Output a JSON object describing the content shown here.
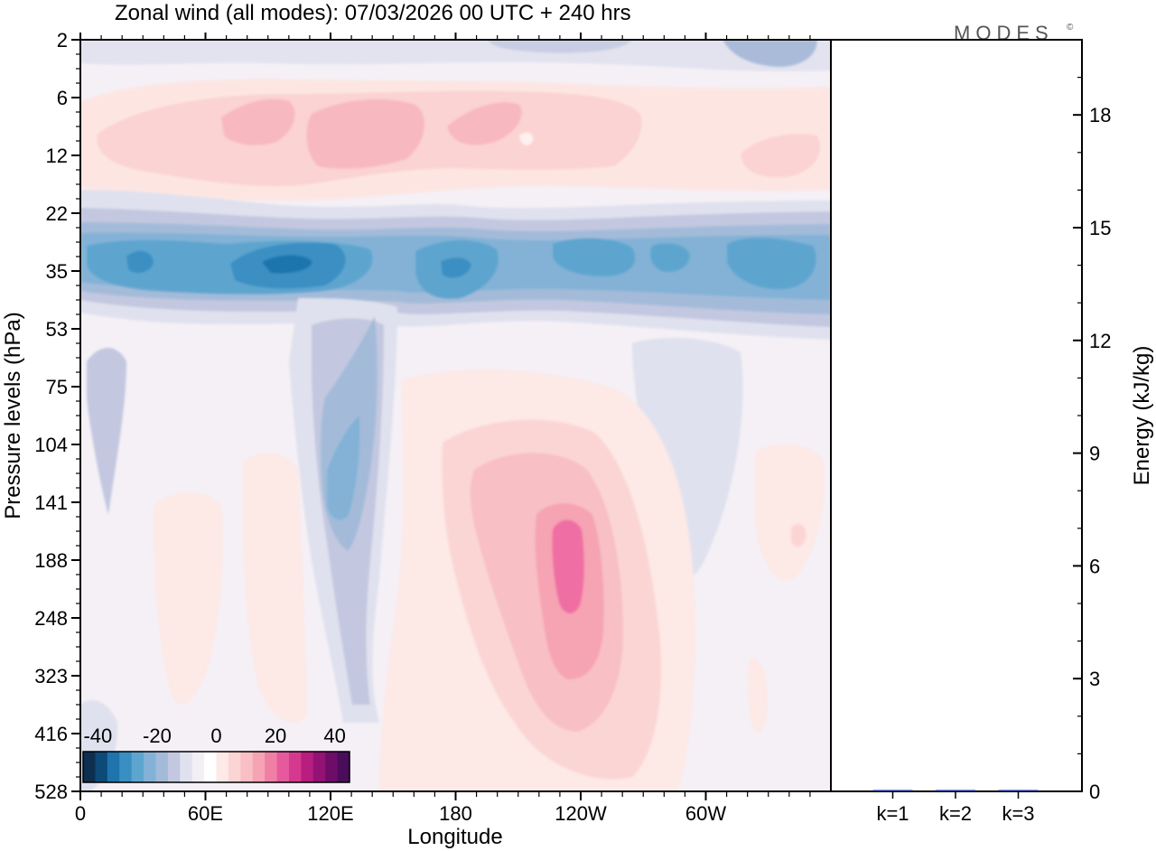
{
  "header": {
    "title": "Zonal wind (all modes):  07/03/2026  00 UTC  + 240 hrs",
    "logo_text": "MODES",
    "logo_mark": "©"
  },
  "chart_data": [
    {
      "type": "heatmap",
      "title": "Zonal wind (all modes):  07/03/2026  00 UTC  + 240 hrs",
      "xlabel": "Longitude",
      "ylabel": "Pressure levels (hPa)",
      "x_ticks": [
        "0",
        "60E",
        "120E",
        "180",
        "120W",
        "60W"
      ],
      "y_ticks": [
        "2",
        "6",
        "12",
        "22",
        "35",
        "53",
        "75",
        "104",
        "141",
        "188",
        "248",
        "323",
        "416",
        "528"
      ],
      "colorbar": {
        "tick_labels": [
          "-40",
          "-20",
          "0",
          "20",
          "40"
        ],
        "range": [
          -45,
          45
        ],
        "colors": [
          "#0d2f4f",
          "#0c4a78",
          "#1f74ad",
          "#3a8fc2",
          "#5da5cf",
          "#83b2d6",
          "#a3bbd9",
          "#c3c8e0",
          "#e0e1ee",
          "#f2eff5",
          "#ffffff",
          "#fde9e6",
          "#fbd5d4",
          "#f8bfc4",
          "#f6a3b4",
          "#f07fa6",
          "#e65a9d",
          "#d5398e",
          "#b81d80",
          "#931274",
          "#6e0c6a",
          "#4a0d5b"
        ]
      },
      "features": [
        {
          "name": "upper-stratosphere positive band",
          "levels_hPa": [
            6,
            16
          ],
          "sign": "positive",
          "max_value": 15
        },
        {
          "name": "stratospheric easterly jet",
          "levels_hPa": [
            26,
            48
          ],
          "sign": "negative",
          "min_value": -35
        },
        {
          "name": "tropospheric westerly maximum",
          "longitude_range": [
            "150E",
            "100W"
          ],
          "levels_hPa": [
            130,
            300
          ],
          "sign": "positive",
          "max_value": 30
        },
        {
          "name": "tropospheric easterly tongue",
          "longitude_range": [
            "115E",
            "130E"
          ],
          "levels_hPa": [
            53,
            250
          ],
          "sign": "negative",
          "min_value": -20
        }
      ]
    },
    {
      "type": "bar",
      "title": "",
      "categories": [
        "k=1",
        "k=2",
        "k=3"
      ],
      "values": [
        0.03,
        0.01,
        0.005
      ],
      "ylabel": "Energy (kJ/kg)",
      "ylim": [
        0,
        20
      ],
      "y_ticks": [
        0,
        3,
        6,
        9,
        12,
        15,
        18
      ],
      "bar_color": "#1b2a8c"
    }
  ]
}
